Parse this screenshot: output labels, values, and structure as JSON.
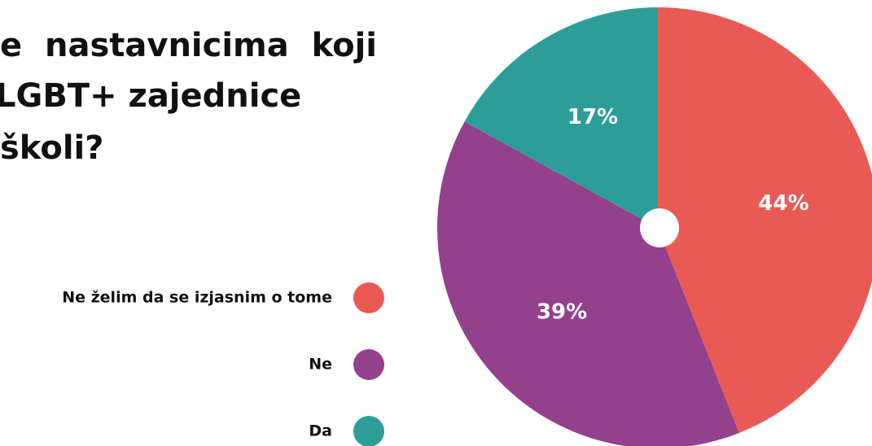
{
  "chart_data": {
    "type": "pie",
    "title_lines": [
      "e  nastavnicima  koji",
      "LGBT+ zajednice",
      "školi?"
    ],
    "series": [
      {
        "name": "Ne želim da se izjasnim o tome",
        "color": "#ea5a54",
        "values": [
          44
        ],
        "value_labels": [
          "44%"
        ]
      },
      {
        "name": "Ne",
        "color": "#93408d",
        "values": [
          39
        ],
        "value_labels": [
          "39%"
        ]
      },
      {
        "name": "Da",
        "color": "#2d9d98",
        "values": [
          17
        ],
        "value_labels": [
          "17%"
        ]
      }
    ]
  }
}
